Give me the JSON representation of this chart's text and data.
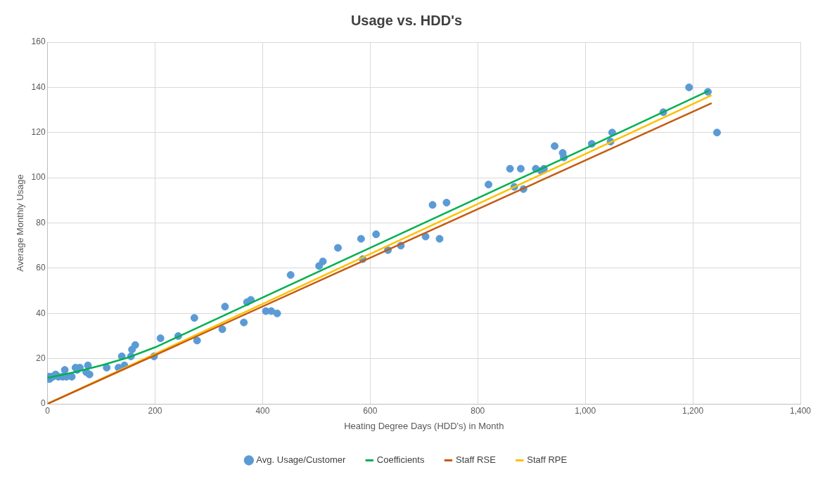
{
  "chart_data": {
    "type": "scatter",
    "title": "Usage vs. HDD's",
    "xlabel": "Heating Degree Days (HDD's) in Month",
    "ylabel": "Average Monthly Usage",
    "xlim": [
      0,
      1400
    ],
    "xticks": [
      0,
      200,
      400,
      600,
      800,
      {
        "value": 1000,
        "label": "1,000"
      },
      {
        "value": 1200,
        "label": "1,200"
      },
      {
        "value": 1400,
        "label": "1,400"
      }
    ],
    "ylim": [
      0,
      160
    ],
    "yticks": [
      0,
      20,
      40,
      60,
      80,
      100,
      120,
      140,
      160
    ],
    "grid": true,
    "legend": "bottom",
    "series": [
      {
        "name": "Avg. Usage/Customer",
        "type": "scatter",
        "marker": "circle",
        "color": "#5b9bd5",
        "x": [
          0,
          2,
          4,
          6,
          10,
          15,
          20,
          28,
          32,
          35,
          45,
          52,
          55,
          60,
          75,
          72,
          78,
          110,
          132,
          138,
          143,
          155,
          157,
          163,
          198,
          210,
          243,
          273,
          278,
          325,
          330,
          365,
          371,
          378,
          406,
          416,
          427,
          452,
          505,
          512,
          540,
          583,
          586,
          611,
          633,
          657,
          703,
          716,
          729,
          742,
          820,
          860,
          868,
          880,
          885,
          908,
          918,
          923,
          943,
          958,
          960,
          1012,
          1047,
          1050,
          1145,
          1193,
          1228,
          1245
        ],
        "values": [
          11,
          12,
          11,
          12,
          12,
          13,
          12,
          12,
          15,
          12,
          12,
          16,
          15,
          16,
          17,
          14,
          13,
          16,
          16,
          21,
          17,
          21,
          24,
          26,
          21,
          29,
          30,
          38,
          28,
          33,
          43,
          36,
          45,
          46,
          41,
          41,
          40,
          57,
          61,
          63,
          69,
          73,
          64,
          75,
          68,
          70,
          74,
          88,
          73,
          89,
          97,
          104,
          96,
          104,
          95,
          104,
          103,
          104,
          114,
          111,
          109,
          115,
          116,
          120,
          129,
          140,
          138,
          120
        ]
      },
      {
        "name": "Coefficients",
        "type": "line",
        "marker": "none",
        "color": "#00b050",
        "x": [
          0,
          50,
          100,
          150,
          200,
          400,
          600,
          800,
          1000,
          1230
        ],
        "values": [
          11.5,
          14,
          17,
          20.5,
          25,
          47,
          69,
          91,
          113,
          138.5
        ]
      },
      {
        "name": "Staff RSE",
        "type": "line",
        "marker": "none",
        "color": "#c55a11",
        "x": [
          0,
          1235
        ],
        "values": [
          0,
          133
        ]
      },
      {
        "name": "Staff RPE",
        "type": "line",
        "marker": "none",
        "color": "#ffc000",
        "x": [
          0,
          1235
        ],
        "values": [
          0,
          136.5
        ]
      }
    ]
  }
}
